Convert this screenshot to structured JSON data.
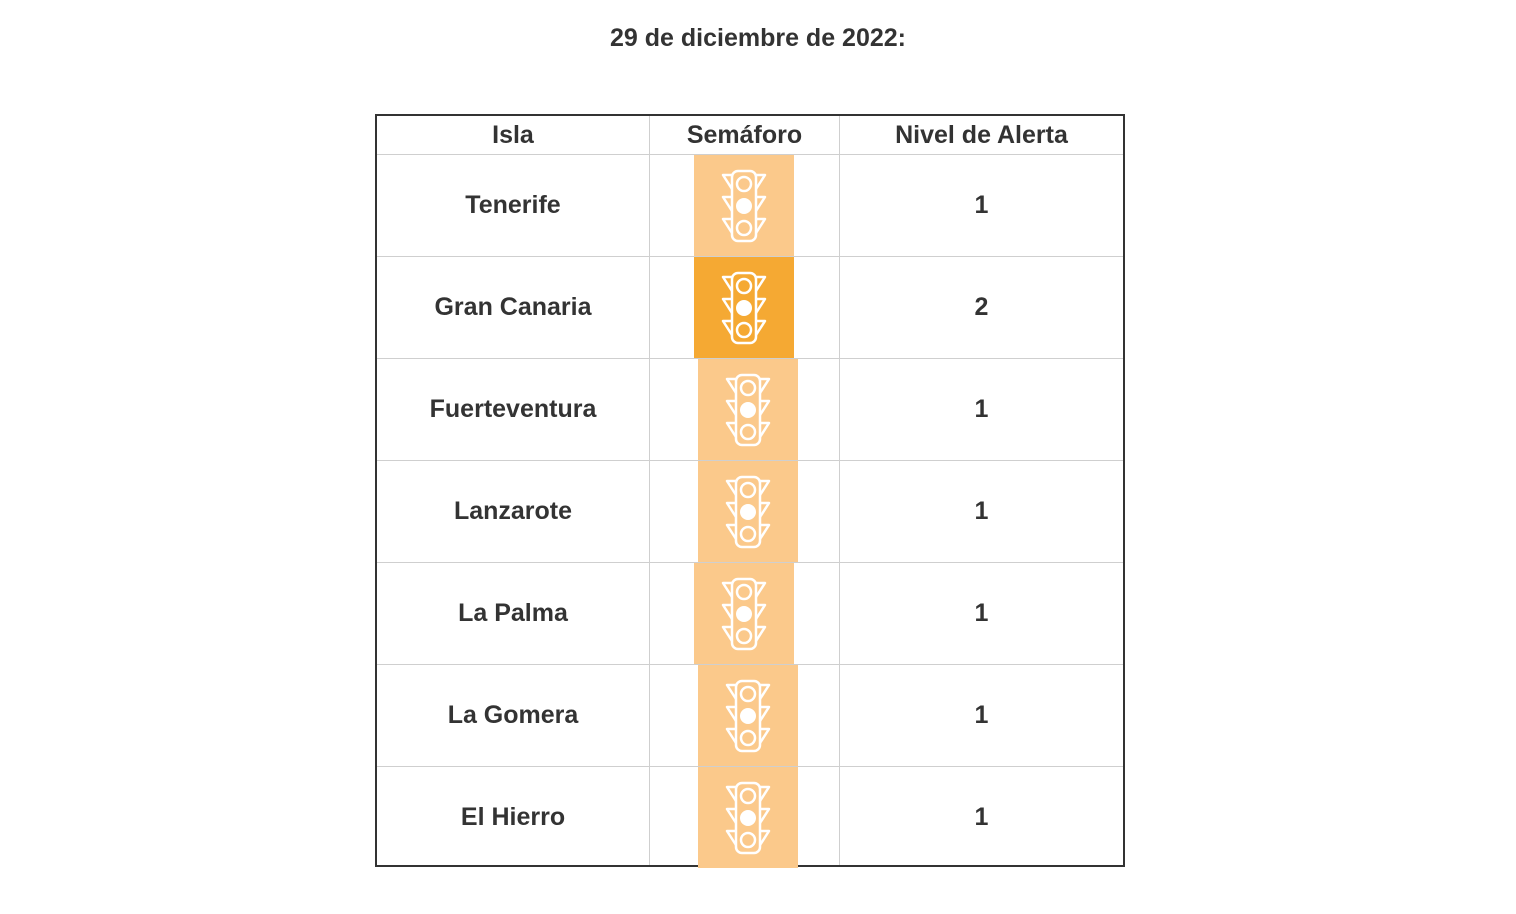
{
  "title": "29 de diciembre de 2022:",
  "colors": {
    "level_1": "#fbc98b",
    "level_2": "#f5a933",
    "icon_stroke": "#ffffff",
    "border": "#333333",
    "grid": "#cfcfcf"
  },
  "table": {
    "headers": {
      "isla": "Isla",
      "semaforo": "Semáforo",
      "nivel": "Nivel de Alerta"
    },
    "rows": [
      {
        "isla": "Tenerife",
        "nivel": "1",
        "icon": "traffic-light-icon"
      },
      {
        "isla": "Gran Canaria",
        "nivel": "2",
        "icon": "traffic-light-icon"
      },
      {
        "isla": "Fuerteventura",
        "nivel": "1",
        "icon": "traffic-light-icon"
      },
      {
        "isla": "Lanzarote",
        "nivel": "1",
        "icon": "traffic-light-icon"
      },
      {
        "isla": "La Palma",
        "nivel": "1",
        "icon": "traffic-light-icon"
      },
      {
        "isla": "La Gomera",
        "nivel": "1",
        "icon": "traffic-light-icon"
      },
      {
        "isla": "El Hierro",
        "nivel": "1",
        "icon": "traffic-light-icon"
      }
    ]
  }
}
